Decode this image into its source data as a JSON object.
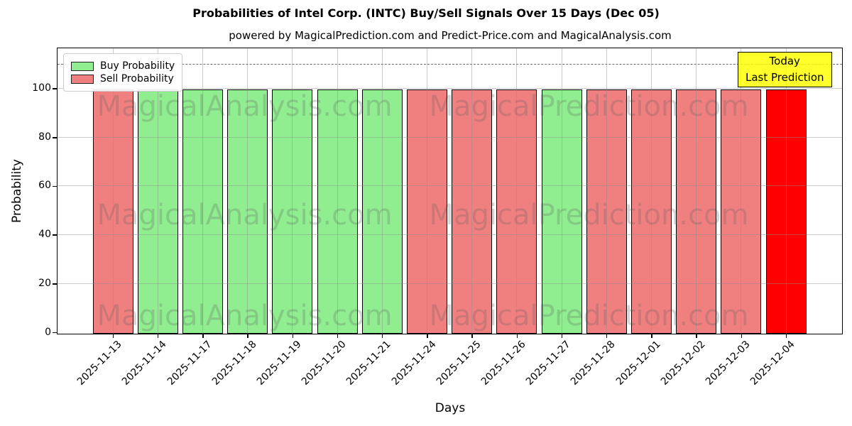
{
  "chart_data": {
    "type": "bar",
    "title": "Probabilities of Intel Corp. (INTC) Buy/Sell Signals Over 15 Days (Dec 05)",
    "subtitle": "powered by MagicalPrediction.com and Predict-Price.com and MagicalAnalysis.com",
    "xlabel": "Days",
    "ylabel": "Probability",
    "ylim": [
      0,
      116.5
    ],
    "yticks": [
      0,
      20,
      40,
      60,
      80,
      100
    ],
    "grid": true,
    "dashed_line_y": 110,
    "categories": [
      "2025-11-13",
      "2025-11-14",
      "2025-11-17",
      "2025-11-18",
      "2025-11-19",
      "2025-11-20",
      "2025-11-21",
      "2025-11-24",
      "2025-11-25",
      "2025-11-26",
      "2025-11-27",
      "2025-11-28",
      "2025-12-01",
      "2025-12-02",
      "2025-12-03",
      "2025-12-04"
    ],
    "values": [
      100,
      100,
      100,
      100,
      100,
      100,
      100,
      100,
      100,
      100,
      100,
      100,
      100,
      100,
      100,
      100
    ],
    "signals": [
      "sell",
      "buy",
      "buy",
      "buy",
      "buy",
      "buy",
      "buy",
      "sell",
      "sell",
      "sell",
      "buy",
      "sell",
      "sell",
      "sell",
      "sell",
      "today"
    ],
    "colors": {
      "buy": "#90ee90",
      "sell": "#f08080",
      "today": "#ff0000"
    },
    "legend": {
      "position": "upper left",
      "items": [
        {
          "label": "Buy Probability",
          "color": "#90ee90"
        },
        {
          "label": "Sell Probability",
          "color": "#f08080"
        }
      ]
    },
    "annotation": {
      "lines": [
        "Today",
        "Last Prediction"
      ],
      "bg_color": "#ffff00"
    },
    "watermarks": {
      "texts": [
        "MagicalAnalysis.com",
        "MagicalPrediction.com"
      ]
    }
  }
}
